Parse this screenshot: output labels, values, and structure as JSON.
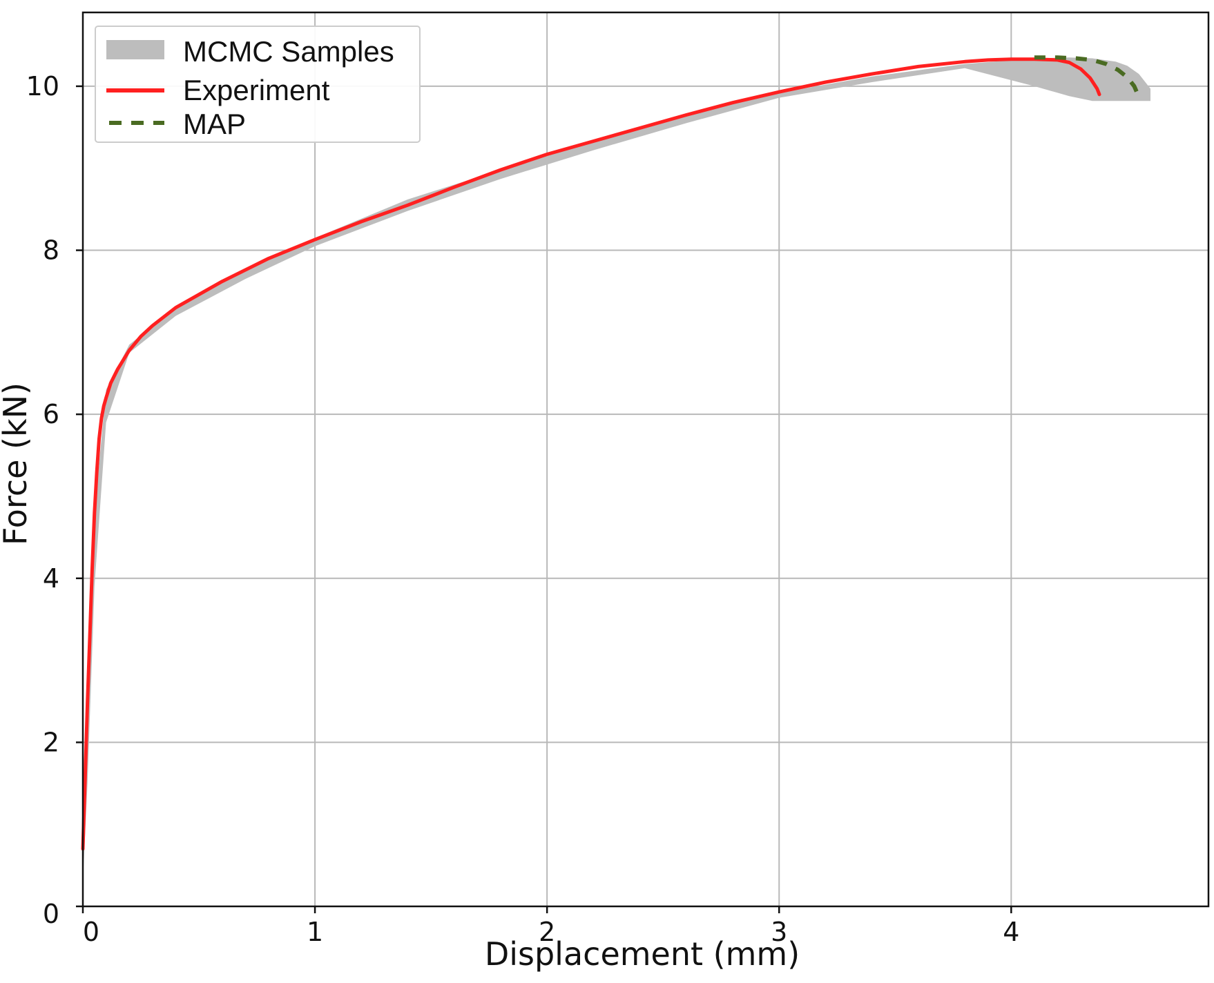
{
  "chart_data": {
    "type": "line",
    "title": "",
    "xlabel": "Displacement (mm)",
    "ylabel": "Force (kN)",
    "xlim": [
      0,
      4.85
    ],
    "ylim": [
      0,
      10.9
    ],
    "xticks": [
      0,
      1,
      2,
      3,
      4
    ],
    "yticks": [
      0,
      2,
      4,
      6,
      8,
      10
    ],
    "xtick_labels": [
      "0",
      "1",
      "2",
      "3",
      "4"
    ],
    "ytick_labels": [
      "0",
      "2",
      "4",
      "6",
      "8",
      "10"
    ],
    "grid": true,
    "legend_position": "top-left",
    "series": [
      {
        "name": "MCMC Samples",
        "kind": "band",
        "color": "#bdbdbd",
        "x": [
          0.0,
          0.02,
          0.05,
          0.1,
          0.2,
          0.4,
          0.7,
          1.0,
          1.4,
          1.8,
          2.2,
          2.6,
          3.0,
          3.4,
          3.8,
          4.1,
          4.25,
          4.35,
          4.45,
          4.5,
          4.55,
          4.6
        ],
        "upper": [
          0.9,
          2.5,
          4.8,
          6.3,
          6.85,
          7.3,
          7.75,
          8.15,
          8.62,
          8.98,
          9.33,
          9.65,
          9.92,
          10.12,
          10.27,
          10.34,
          10.35,
          10.34,
          10.3,
          10.25,
          10.15,
          9.97
        ],
        "lower": [
          0.3,
          1.5,
          3.9,
          5.9,
          6.75,
          7.2,
          7.65,
          8.05,
          8.48,
          8.87,
          9.22,
          9.55,
          9.86,
          10.05,
          10.22,
          10.0,
          9.88,
          9.82,
          9.82,
          9.82,
          9.82,
          9.82
        ]
      },
      {
        "name": "Experiment",
        "kind": "line",
        "color": "#ff2020",
        "x": [
          0.0,
          0.01,
          0.02,
          0.03,
          0.04,
          0.05,
          0.06,
          0.07,
          0.08,
          0.09,
          0.1,
          0.12,
          0.15,
          0.2,
          0.25,
          0.3,
          0.4,
          0.5,
          0.6,
          0.8,
          1.0,
          1.2,
          1.4,
          1.6,
          1.8,
          2.0,
          2.2,
          2.4,
          2.6,
          2.8,
          3.0,
          3.2,
          3.4,
          3.6,
          3.8,
          3.9,
          4.0,
          4.1,
          4.2,
          4.25,
          4.3,
          4.34,
          4.37,
          4.38
        ],
        "y": [
          0.7,
          1.6,
          2.5,
          3.3,
          4.1,
          4.8,
          5.3,
          5.7,
          5.95,
          6.1,
          6.2,
          6.38,
          6.55,
          6.78,
          6.95,
          7.08,
          7.3,
          7.46,
          7.62,
          7.9,
          8.13,
          8.35,
          8.55,
          8.77,
          8.98,
          9.17,
          9.33,
          9.49,
          9.65,
          9.8,
          9.93,
          10.05,
          10.15,
          10.24,
          10.3,
          10.32,
          10.33,
          10.33,
          10.32,
          10.29,
          10.21,
          10.1,
          9.97,
          9.9
        ]
      },
      {
        "name": "MAP",
        "kind": "dashed",
        "color": "#4a6b22",
        "x": [
          4.1,
          4.2,
          4.28,
          4.35,
          4.41,
          4.46,
          4.5,
          4.53,
          4.55
        ],
        "y": [
          10.35,
          10.35,
          10.34,
          10.32,
          10.27,
          10.2,
          10.11,
          10.0,
          9.87
        ]
      }
    ]
  }
}
